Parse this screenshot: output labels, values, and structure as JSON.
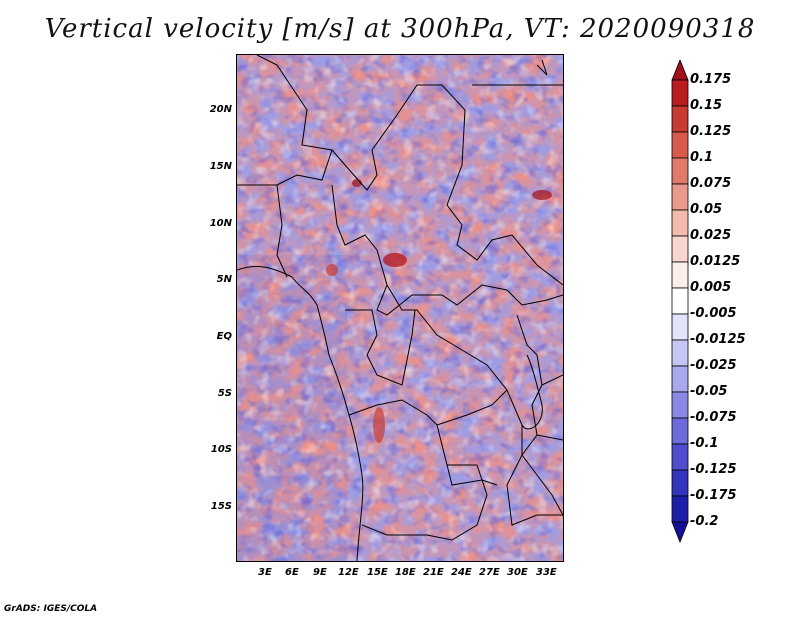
{
  "title": "Vertical velocity [m/s] at 300hPa, VT: 2020090318",
  "credit": "GrADS: IGES/COLA",
  "lat_ticks": [
    "20N",
    "15N",
    "10N",
    "5N",
    "EQ",
    "5S",
    "10S",
    "15S"
  ],
  "lon_ticks": [
    "3E",
    "6E",
    "9E",
    "12E",
    "15E",
    "18E",
    "21E",
    "24E",
    "27E",
    "30E",
    "33E"
  ],
  "colorbar": {
    "labels": [
      "0.175",
      "0.15",
      "0.125",
      "0.1",
      "0.075",
      "0.05",
      "0.025",
      "0.0125",
      "0.005",
      "-0.005",
      "-0.0125",
      "-0.025",
      "-0.05",
      "-0.075",
      "-0.1",
      "-0.125",
      "-0.175",
      "-0.2"
    ],
    "colors": [
      "#a00f1a",
      "#b81c1f",
      "#c93a32",
      "#d75a4c",
      "#e07a6a",
      "#e99a8a",
      "#f2b9ad",
      "#f8d6cf",
      "#fcecea",
      "#ffffff",
      "#e3e3fb",
      "#c6c6f5",
      "#a8a8ef",
      "#8a8ae6",
      "#6c6cdc",
      "#4e4ecf",
      "#3434be",
      "#1e1ea8",
      "#140f96"
    ]
  }
}
